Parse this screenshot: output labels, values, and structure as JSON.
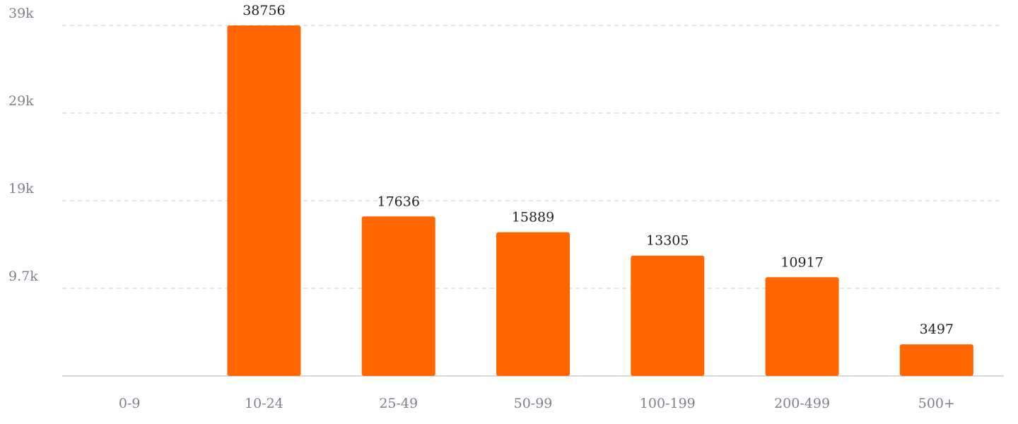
{
  "chart_data": {
    "type": "bar",
    "categories": [
      "0-9",
      "10-24",
      "25-49",
      "50-99",
      "100-199",
      "200-499",
      "500+"
    ],
    "values": [
      null,
      38756,
      17636,
      15889,
      13305,
      10917,
      3497
    ],
    "color": "#ff6600",
    "ylim": [
      0,
      38756
    ],
    "yticks": [
      {
        "value": 9689,
        "label": "9.7k"
      },
      {
        "value": 19378,
        "label": "19k"
      },
      {
        "value": 29067,
        "label": "29k"
      },
      {
        "value": 38756,
        "label": "39k"
      }
    ],
    "grid": true
  }
}
